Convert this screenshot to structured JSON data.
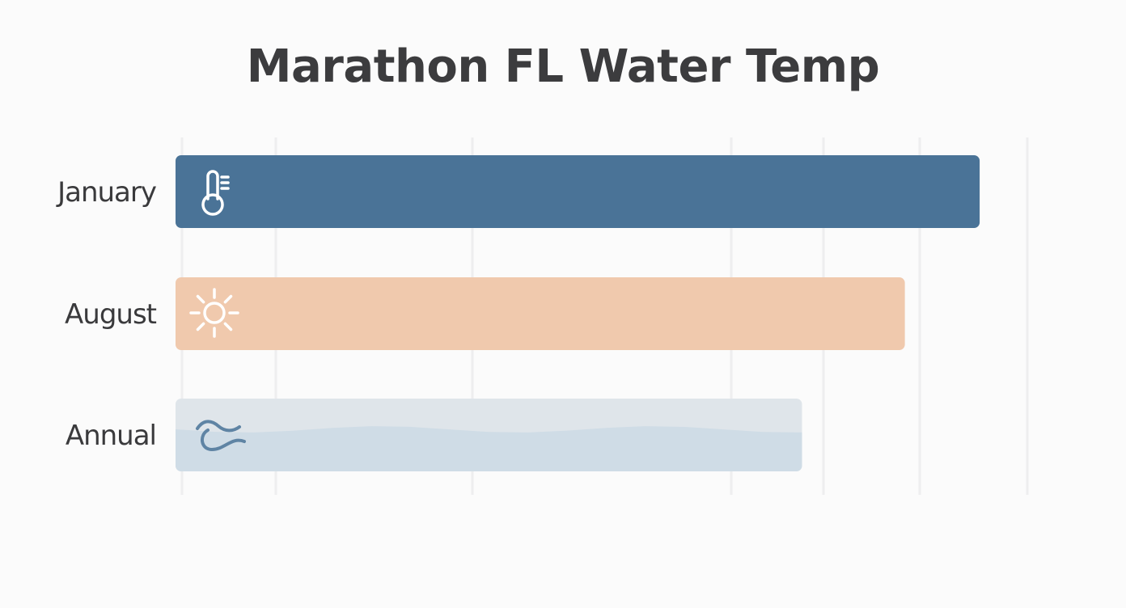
{
  "chart_data": {
    "type": "bar",
    "orientation": "horizontal",
    "title": "Marathon FL Water Temp",
    "categories": [
      "January",
      "August",
      "Annual"
    ],
    "values": [
      86,
      78,
      67
    ],
    "xlim": [
      0,
      93
    ],
    "grid": true,
    "legend": "none",
    "xlabel": "",
    "ylabel": "",
    "colors": [
      "#4a7397",
      "#f0c9ad",
      "#dfe5ea"
    ],
    "icons": [
      "thermometer-icon",
      "sun-icon",
      "wave-icon"
    ]
  }
}
